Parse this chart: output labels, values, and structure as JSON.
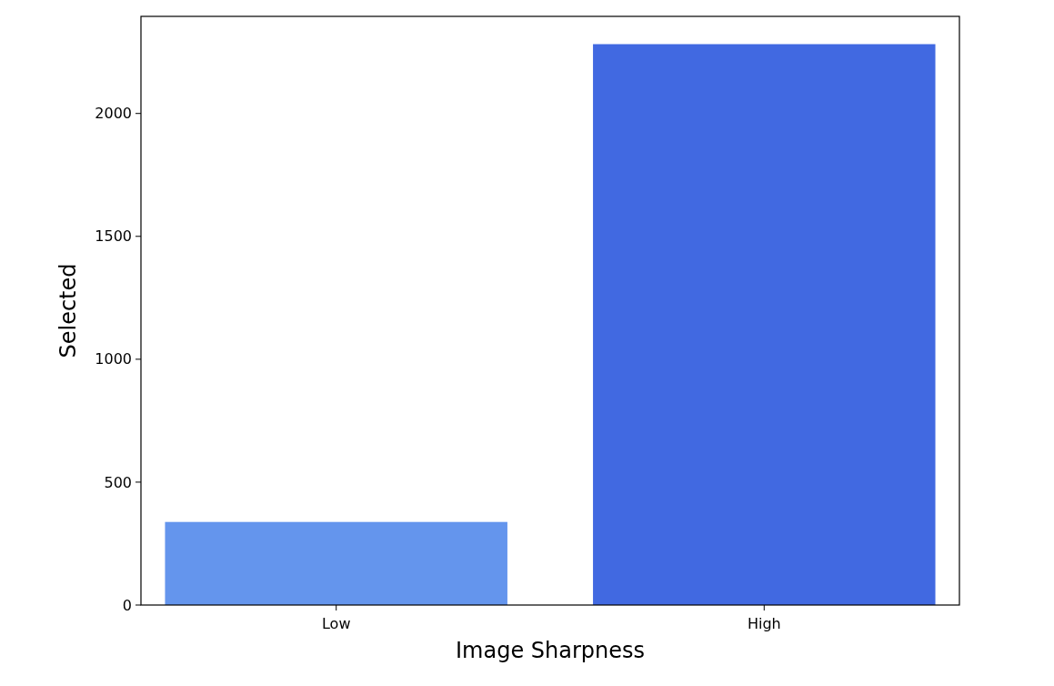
{
  "chart_data": {
    "type": "bar",
    "xlabel": "Image Sharpness",
    "ylabel": "Selected",
    "categories": [
      "Low",
      "High"
    ],
    "values": [
      338,
      2282
    ],
    "colors": [
      "#6495ed",
      "#4169e1"
    ],
    "ylim": [
      0,
      2395
    ],
    "yticks": [
      0,
      500,
      1000,
      1500,
      2000
    ]
  }
}
